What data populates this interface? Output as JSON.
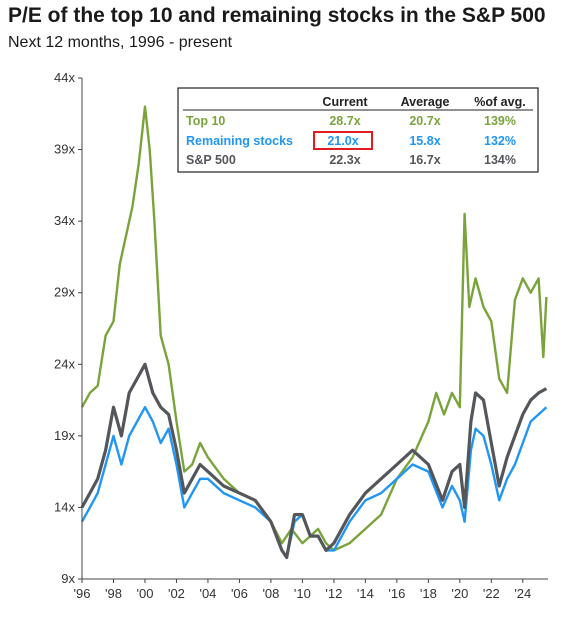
{
  "chart_data": {
    "type": "line",
    "title": "P/E of the top 10 and remaining stocks in the S&P 500",
    "subtitle": "Next 12 months, 1996 - present",
    "xlim": [
      1996,
      2025.6
    ],
    "ylim": [
      9,
      44
    ],
    "y_ticks": [
      9,
      14,
      19,
      24,
      29,
      34,
      39,
      44
    ],
    "y_tick_labels": [
      "9x",
      "14x",
      "19x",
      "24x",
      "29x",
      "34x",
      "39x",
      "44x"
    ],
    "x_ticks": [
      1996,
      1998,
      2000,
      2002,
      2004,
      2006,
      2008,
      2010,
      2012,
      2014,
      2016,
      2018,
      2020,
      2022,
      2024
    ],
    "x_tick_labels": [
      "'96",
      "'98",
      "'00",
      "'02",
      "'04",
      "'06",
      "'08",
      "'10",
      "'12",
      "'14",
      "'16",
      "'18",
      "'20",
      "'22",
      "'24"
    ],
    "grid": false,
    "legend": "table, top-right",
    "series": [
      {
        "name": "Top 10",
        "color": "#7aa33c",
        "x": [
          1996,
          1996.5,
          1997,
          1997.5,
          1998,
          1998.4,
          1998.8,
          1999.2,
          1999.6,
          2000,
          2000.3,
          2000.6,
          2001,
          2001.5,
          2002,
          2002.5,
          2003,
          2003.5,
          2004,
          2005,
          2006,
          2007,
          2008,
          2008.7,
          2009.3,
          2010,
          2010.5,
          2011,
          2011.5,
          2012,
          2013,
          2014,
          2015,
          2016,
          2017,
          2018,
          2018.5,
          2019,
          2019.5,
          2020,
          2020.3,
          2020.6,
          2021,
          2021.5,
          2022,
          2022.5,
          2023,
          2023.5,
          2024,
          2024.5,
          2025,
          2025.3,
          2025.5
        ],
        "values": [
          21,
          22,
          22.5,
          26,
          27,
          31,
          33,
          35,
          38,
          42,
          39,
          34,
          26,
          24,
          20,
          16.5,
          17,
          18.5,
          17.5,
          16,
          15,
          14.5,
          13,
          11.5,
          12.5,
          11.5,
          12,
          12.5,
          11.5,
          11,
          11.5,
          12.5,
          13.5,
          16,
          17.5,
          20,
          22,
          20.5,
          22,
          21,
          34.5,
          28,
          30,
          28,
          27,
          23,
          22,
          28.5,
          30,
          29,
          30,
          24.5,
          28.7
        ]
      },
      {
        "name": "Remaining stocks",
        "color": "#2196f3",
        "x": [
          1996,
          1996.5,
          1997,
          1997.5,
          1998,
          1998.5,
          1999,
          1999.5,
          2000,
          2000.5,
          2001,
          2001.5,
          2002,
          2002.5,
          2003,
          2003.5,
          2004,
          2005,
          2006,
          2007,
          2008,
          2008.7,
          2009,
          2009.5,
          2010,
          2010.5,
          2011,
          2011.5,
          2012,
          2013,
          2014,
          2015,
          2016,
          2017,
          2018,
          2018.9,
          2019.5,
          2020,
          2020.3,
          2020.7,
          2021,
          2021.5,
          2022,
          2022.5,
          2023,
          2023.5,
          2024,
          2024.5,
          2025,
          2025.5
        ],
        "values": [
          13,
          14,
          15,
          17,
          19,
          17,
          19,
          20,
          21,
          20,
          18.5,
          19.5,
          17,
          14,
          15,
          16,
          16,
          15,
          14.5,
          14,
          13,
          11,
          10.5,
          13,
          13.5,
          12,
          12,
          11,
          11,
          13,
          14.5,
          15,
          16,
          17,
          16.5,
          14,
          15.5,
          14.5,
          13,
          18,
          19.5,
          19,
          17,
          14.5,
          16,
          17,
          18.5,
          20,
          20.5,
          21
        ]
      },
      {
        "name": "S&P 500",
        "color": "#53565a",
        "x": [
          1996,
          1996.5,
          1997,
          1997.5,
          1998,
          1998.5,
          1999,
          1999.5,
          2000,
          2000.5,
          2001,
          2001.5,
          2002,
          2002.5,
          2003,
          2003.5,
          2004,
          2005,
          2006,
          2007,
          2008,
          2008.7,
          2009,
          2009.5,
          2010,
          2010.5,
          2011,
          2011.5,
          2012,
          2013,
          2014,
          2015,
          2016,
          2017,
          2018,
          2018.9,
          2019.5,
          2020,
          2020.3,
          2020.7,
          2021,
          2021.5,
          2022,
          2022.5,
          2023,
          2023.5,
          2024,
          2024.5,
          2025,
          2025.5
        ],
        "values": [
          14,
          15,
          16,
          18,
          21,
          19,
          22,
          23,
          24,
          22,
          21,
          20.5,
          18,
          15,
          16,
          17,
          16.5,
          15.5,
          15,
          14.5,
          13,
          11,
          10.5,
          13.5,
          13.5,
          12,
          12,
          11,
          11.5,
          13.5,
          15,
          16,
          17,
          18,
          17,
          14.5,
          16.5,
          17,
          14,
          20,
          22,
          21.5,
          18.5,
          15.5,
          17.5,
          19,
          20.5,
          21.5,
          22,
          22.3
        ]
      }
    ],
    "table": {
      "headers": [
        "Current",
        "Average",
        "%of avg."
      ],
      "rows": [
        {
          "label": "Top 10",
          "current": "28.7x",
          "average": "20.7x",
          "pct": "139%",
          "color": "#7aa33c"
        },
        {
          "label": "Remaining stocks",
          "current": "21.0x",
          "average": "15.8x",
          "pct": "132%",
          "color": "#2196f3"
        },
        {
          "label": "S&P 500",
          "current": "22.3x",
          "average": "16.7x",
          "pct": "134%",
          "color": "#53565a"
        }
      ],
      "highlight_color": "#e11b22"
    }
  }
}
